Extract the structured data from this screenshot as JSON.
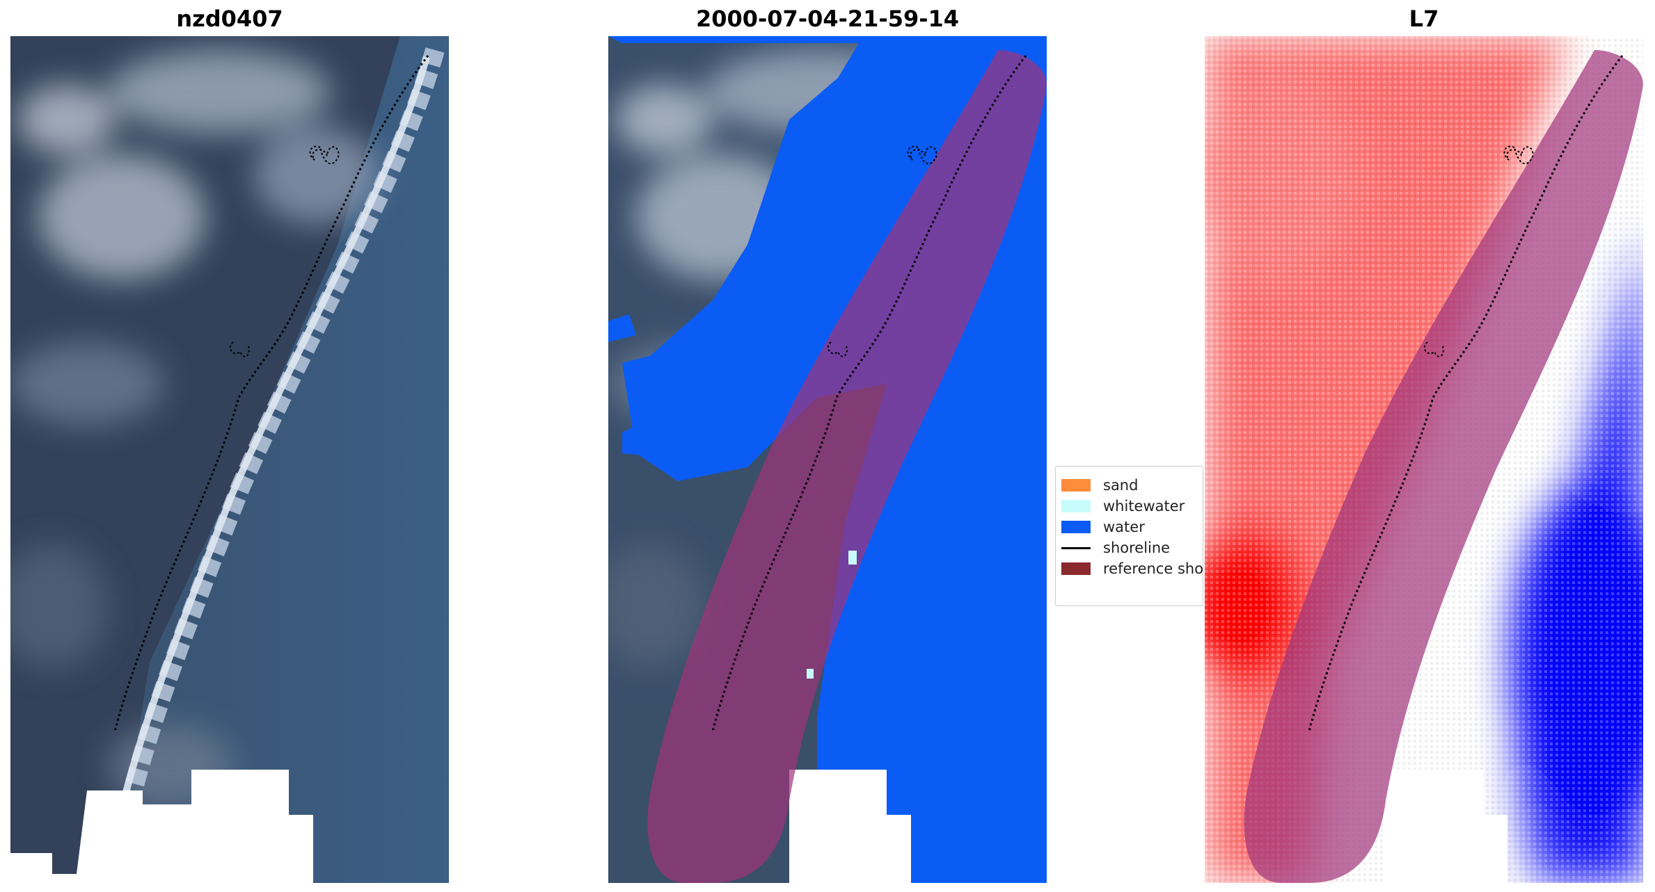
{
  "panels": [
    {
      "title": "nzd0407"
    },
    {
      "title": "2000-07-04-21-59-14"
    },
    {
      "title": "L7"
    }
  ],
  "legend": {
    "items": [
      {
        "label": "sand",
        "color": "#ff8c3a",
        "kind": "patch"
      },
      {
        "label": "whitewater",
        "color": "#c8fbfb",
        "kind": "patch"
      },
      {
        "label": "water",
        "color": "#0b5cf5",
        "kind": "patch"
      },
      {
        "label": "shoreline",
        "color": "#000000",
        "kind": "line"
      },
      {
        "label": "reference shoreline buffer",
        "color": "#8b2a2e",
        "kind": "patch"
      }
    ]
  },
  "colors": {
    "water_class": "#0b5cf5",
    "buffer": "#8b2a2e",
    "buffer_overlay": "#a0337a",
    "index_positive": "#ff0000",
    "index_negative": "#0000ff"
  }
}
